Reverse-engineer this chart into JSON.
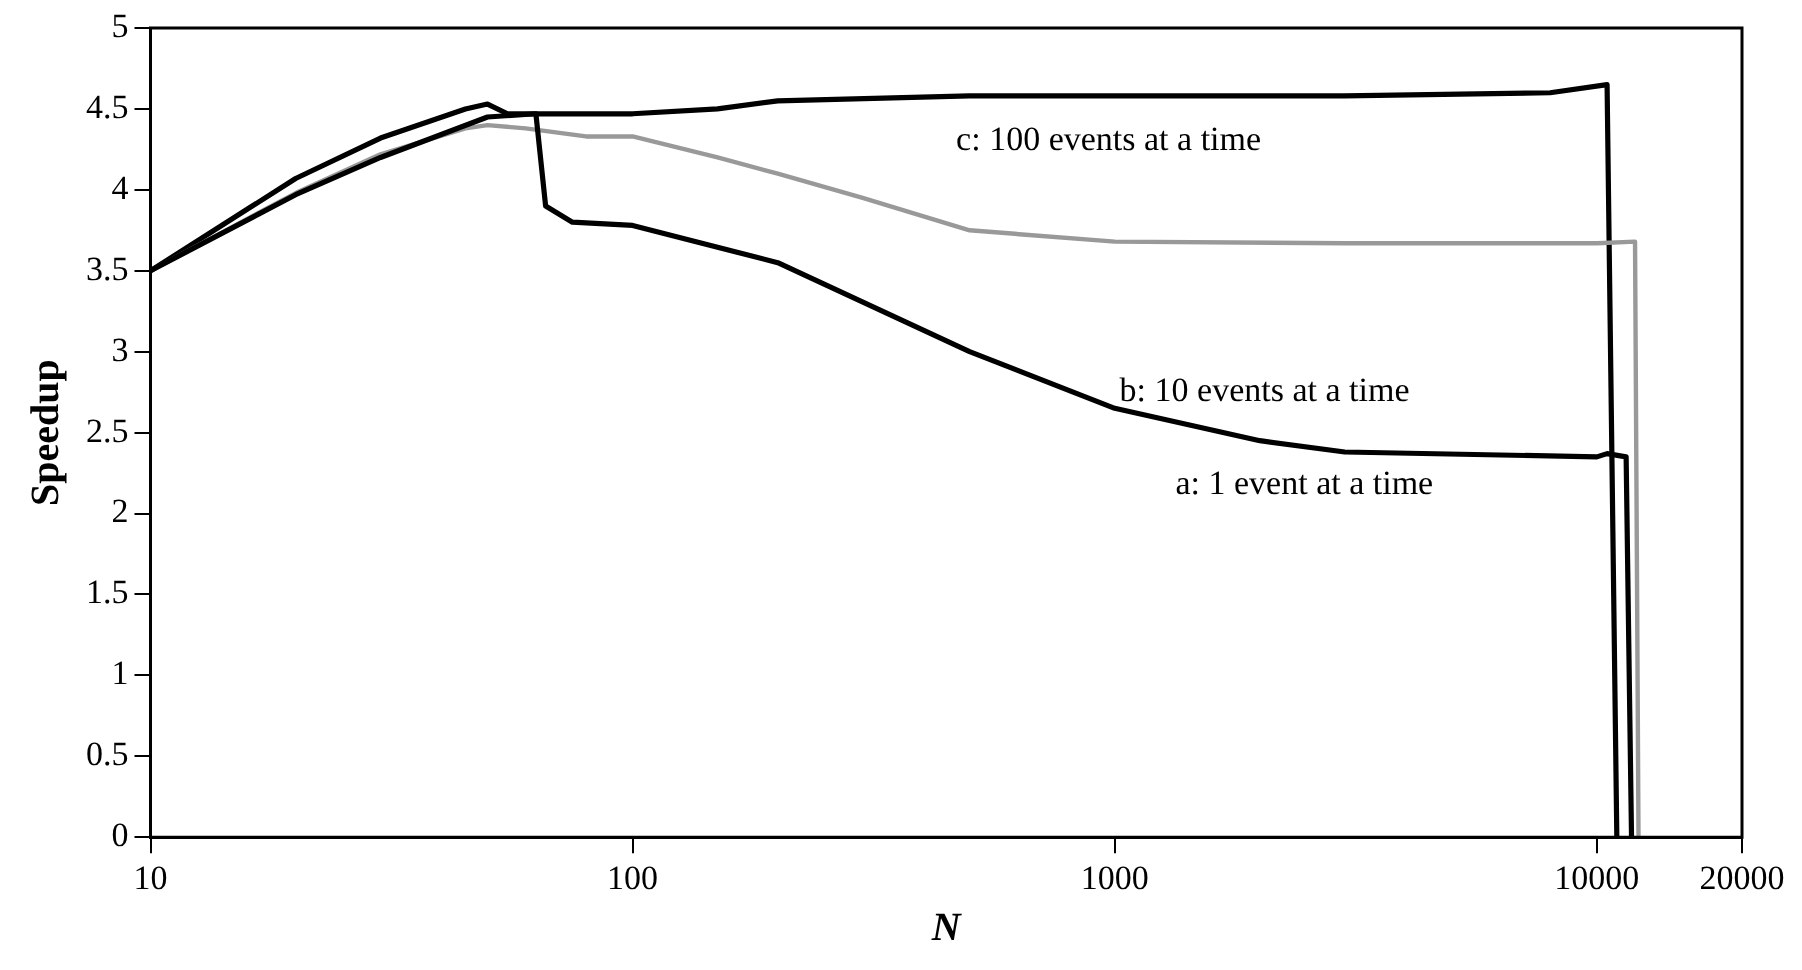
{
  "chart_data": {
    "type": "line",
    "xlabel": "N",
    "ylabel": "Speedup",
    "log": "x",
    "grid": false,
    "legend": false,
    "marker": "none",
    "line_style": "solid",
    "xlim": [
      10,
      20000
    ],
    "xticks": [
      10,
      100,
      1000,
      10000,
      20000
    ],
    "ylim": [
      0,
      5
    ],
    "yticks": [
      0,
      0.5,
      1,
      1.5,
      2,
      2.5,
      3,
      3.5,
      4,
      4.5,
      5
    ],
    "series": [
      {
        "color": "#000000",
        "x": [
          10,
          20,
          30,
          50,
          63,
          66,
          75,
          100,
          200,
          500,
          1000,
          2000,
          3000,
          10000,
          10500,
          11500,
          11800
        ],
        "values": [
          3.5,
          3.97,
          4.2,
          4.45,
          4.47,
          3.9,
          3.8,
          3.78,
          3.55,
          3.0,
          2.65,
          2.45,
          2.38,
          2.35,
          2.37,
          2.35,
          0
        ]
      },
      {
        "color": "#999999",
        "x": [
          10,
          20,
          30,
          45,
          50,
          60,
          80,
          100,
          150,
          200,
          300,
          500,
          1000,
          3000,
          10000,
          12000,
          12200
        ],
        "values": [
          3.5,
          3.98,
          4.22,
          4.38,
          4.4,
          4.38,
          4.33,
          4.33,
          4.2,
          4.1,
          3.95,
          3.75,
          3.68,
          3.67,
          3.67,
          3.68,
          0
        ]
      },
      {
        "color": "#000000",
        "x": [
          10,
          20,
          30,
          45,
          50,
          55,
          100,
          150,
          200,
          500,
          1000,
          3000,
          8000,
          10500,
          11000
        ],
        "values": [
          3.5,
          4.07,
          4.32,
          4.5,
          4.53,
          4.47,
          4.47,
          4.5,
          4.55,
          4.58,
          4.58,
          4.58,
          4.6,
          4.65,
          0
        ]
      }
    ],
    "annotations": [
      "c: 100 events at a time",
      "b: 10 events at a time",
      "a: 1 event at a time"
    ]
  }
}
